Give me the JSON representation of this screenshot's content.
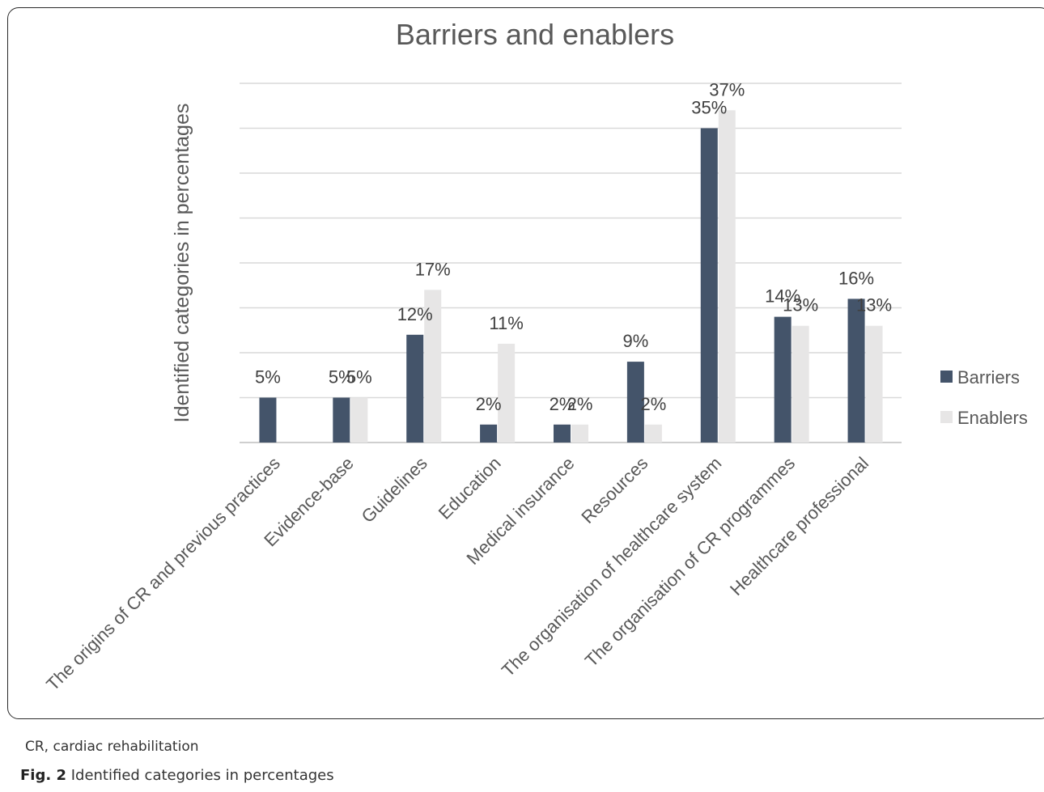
{
  "chart_data": {
    "type": "bar",
    "title": "Barriers and enablers",
    "ylabel": "Identified categories in percentages",
    "xlabel": "",
    "categories": [
      "The origins of CR and previous practices",
      "Evidence-base",
      "Guidelines",
      "Education",
      "Medical insurance",
      "Resources",
      "The organisation of healthcare system",
      "The organisation of CR programmes",
      "Healthcare professional"
    ],
    "series": [
      {
        "name": "Barriers",
        "color": "#44546a",
        "values": [
          5,
          5,
          12,
          2,
          2,
          9,
          35,
          14,
          16
        ],
        "labels": [
          "5%",
          "5%",
          "12%",
          "2%",
          "2%",
          "9%",
          "35%",
          "14%",
          "16%"
        ]
      },
      {
        "name": "Enablers",
        "color": "#e7e6e6",
        "values": [
          0,
          5,
          17,
          11,
          2,
          2,
          37,
          13,
          13
        ],
        "labels": [
          "",
          "5%",
          "17%",
          "11%",
          "2%",
          "2%",
          "37%",
          "13%",
          "13%"
        ]
      }
    ],
    "ylim": [
      0,
      40
    ],
    "grid": true,
    "legend_position": "right"
  },
  "footnote": "CR, cardiac rehabilitation",
  "caption": {
    "label": "Fig. 2",
    "text": "Identified categories in percentages"
  }
}
